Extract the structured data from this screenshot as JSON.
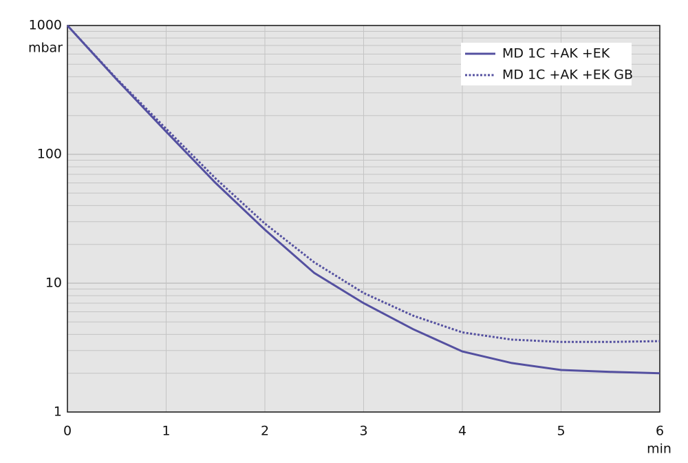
{
  "chart_data": {
    "type": "line",
    "y_unit": "mbar",
    "x_unit": "min",
    "x": [
      0,
      0.5,
      1,
      1.5,
      2,
      2.5,
      3,
      3.5,
      4,
      4.5,
      5,
      5.5,
      6
    ],
    "series": [
      {
        "name": "MD 1C +AK +EK",
        "color": "#5450a0",
        "style": "solid",
        "values": [
          1000,
          380,
          150,
          60,
          26,
          12,
          7.0,
          4.4,
          2.95,
          2.4,
          2.12,
          2.05,
          2.0
        ]
      },
      {
        "name": "MD 1C +AK +EK GB",
        "color": "#5450a0",
        "style": "dotted",
        "values": [
          1000,
          385,
          158,
          65,
          29,
          14.5,
          8.4,
          5.6,
          4.15,
          3.65,
          3.5,
          3.5,
          3.55
        ]
      }
    ],
    "xlim": [
      0,
      6
    ],
    "xticks": [
      0,
      1,
      2,
      3,
      4,
      5,
      6
    ],
    "ylim": [
      1,
      1000
    ],
    "yticks": [
      1,
      10,
      100,
      1000
    ],
    "ylog": true,
    "minor_yticks": [
      2,
      3,
      4,
      5,
      6,
      7,
      8,
      9,
      20,
      30,
      40,
      50,
      60,
      70,
      80,
      90,
      200,
      300,
      400,
      500,
      600,
      700,
      800,
      900
    ],
    "grid": true,
    "legend": "upper right",
    "plot_background": "#e5e5e5"
  }
}
